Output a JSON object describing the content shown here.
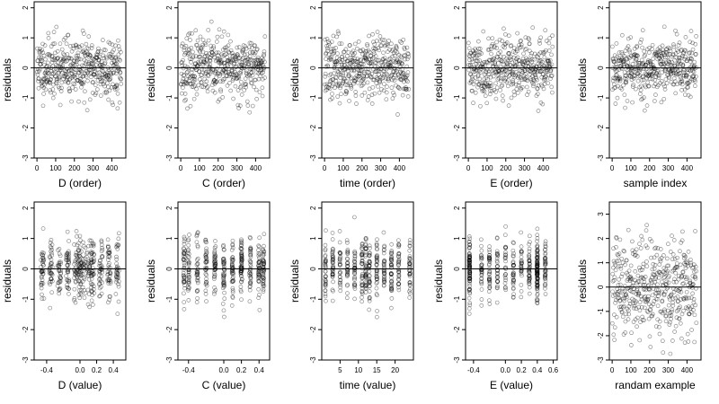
{
  "chart_data": [
    {
      "type": "scatter",
      "xlabel": "D (order)",
      "ylabel": "residuals",
      "xlim": [
        -15,
        475
      ],
      "ylim": [
        -3,
        2.2
      ],
      "xticks": [
        0,
        100,
        200,
        300,
        400
      ],
      "yticks": [
        -3,
        -2,
        -1,
        0,
        1,
        2
      ],
      "hline": 0,
      "gen": {
        "n": 450,
        "mode": "index",
        "sd": 0.5,
        "seed": 11
      },
      "points": []
    },
    {
      "type": "scatter",
      "xlabel": "C (order)",
      "ylabel": "residuals",
      "xlim": [
        -15,
        475
      ],
      "ylim": [
        -3,
        2.2
      ],
      "xticks": [
        0,
        100,
        200,
        300,
        400
      ],
      "yticks": [
        -3,
        -2,
        -1,
        0,
        1,
        2
      ],
      "hline": 0,
      "gen": {
        "n": 450,
        "mode": "index",
        "sd": 0.5,
        "seed": 23
      },
      "points": []
    },
    {
      "type": "scatter",
      "xlabel": "time (order)",
      "ylabel": "residuals",
      "xlim": [
        -15,
        475
      ],
      "ylim": [
        -3,
        2.2
      ],
      "xticks": [
        0,
        100,
        200,
        300,
        400
      ],
      "yticks": [
        -3,
        -2,
        -1,
        0,
        1,
        2
      ],
      "hline": 0,
      "gen": {
        "n": 450,
        "mode": "index",
        "sd": 0.5,
        "seed": 37
      },
      "points": []
    },
    {
      "type": "scatter",
      "xlabel": "E (order)",
      "ylabel": "residuals",
      "xlim": [
        -15,
        475
      ],
      "ylim": [
        -3,
        2.2
      ],
      "xticks": [
        0,
        100,
        200,
        300,
        400
      ],
      "yticks": [
        -3,
        -2,
        -1,
        0,
        1,
        2
      ],
      "hline": 0,
      "gen": {
        "n": 450,
        "mode": "index",
        "sd": 0.5,
        "seed": 41
      },
      "points": []
    },
    {
      "type": "scatter",
      "xlabel": "sample index",
      "ylabel": "residuals",
      "xlim": [
        -15,
        475
      ],
      "ylim": [
        -3,
        2.2
      ],
      "xticks": [
        0,
        100,
        200,
        300,
        400
      ],
      "yticks": [
        -3,
        -2,
        -1,
        0,
        1,
        2
      ],
      "hline": 0,
      "gen": {
        "n": 450,
        "mode": "index",
        "sd": 0.5,
        "seed": 53
      },
      "points": []
    },
    {
      "type": "scatter",
      "xlabel": "D (value)",
      "ylabel": "residuals",
      "xlim": [
        -0.55,
        0.55
      ],
      "ylim": [
        -3,
        2.2
      ],
      "xticks": [
        -0.4,
        0,
        0.2,
        0.4
      ],
      "ytick_labels": true,
      "yticks": [
        -3,
        -2,
        -1,
        0,
        1,
        2
      ],
      "hline": 0,
      "gen": {
        "n": 450,
        "mode": "values",
        "values": [
          -0.45,
          -0.35,
          -0.25,
          -0.15,
          -0.05,
          0.0,
          0.05,
          0.1,
          0.15,
          0.25,
          0.35,
          0.45
        ],
        "jitter": 0.02,
        "sd": 0.5,
        "seed": 61
      },
      "points": []
    },
    {
      "type": "scatter",
      "xlabel": "C (value)",
      "ylabel": "residuals",
      "xlim": [
        -0.52,
        0.52
      ],
      "ylim": [
        -3,
        2.2
      ],
      "xticks": [
        -0.4,
        0,
        0.2,
        0.4
      ],
      "yticks": [
        -3,
        -2,
        -1,
        0,
        1,
        2
      ],
      "hline": 0,
      "gen": {
        "n": 450,
        "mode": "values",
        "values": [
          -0.45,
          -0.4,
          -0.3,
          -0.2,
          -0.1,
          0,
          0.1,
          0.2,
          0.3,
          0.4,
          0.45
        ],
        "jitter": 0.008,
        "sd": 0.5,
        "seed": 71
      },
      "points": []
    },
    {
      "type": "scatter",
      "xlabel": "time (value)",
      "ylabel": "residuals",
      "xlim": [
        0,
        25
      ],
      "ylim": [
        -3,
        2.2
      ],
      "xticks": [
        5,
        10,
        15,
        20
      ],
      "yticks": [
        -3,
        -2,
        -1,
        0,
        1,
        2
      ],
      "hline": 0,
      "gen": {
        "n": 450,
        "mode": "values",
        "values": [
          1,
          3,
          5,
          7,
          9,
          11,
          12,
          13,
          15,
          17,
          19,
          21,
          24
        ],
        "jitter": 0.1,
        "sd": 0.5,
        "seed": 83
      },
      "points": []
    },
    {
      "type": "scatter",
      "xlabel": "E (value)",
      "ylabel": "residuals",
      "xlim": [
        -0.5,
        0.65
      ],
      "ylim": [
        -3,
        2.2
      ],
      "xticks": [
        -0.4,
        0,
        0.2,
        0.4,
        0.6
      ],
      "yticks": [
        -3,
        -2,
        -1,
        0,
        1,
        2
      ],
      "hline": 0,
      "gen": {
        "n": 450,
        "mode": "values",
        "values": [
          -0.45,
          -0.45,
          -0.45,
          -0.3,
          -0.2,
          -0.1,
          0,
          0.1,
          0.2,
          0.3,
          0.4,
          0.4,
          0.4,
          0.5
        ],
        "jitter": 0.005,
        "sd": 0.5,
        "seed": 97
      },
      "points": []
    },
    {
      "type": "scatter",
      "xlabel": "randam example",
      "ylabel": "residuals",
      "xlim": [
        -15,
        475
      ],
      "ylim": [
        -3,
        3.5
      ],
      "xticks": [
        0,
        100,
        200,
        300,
        400
      ],
      "yticks": [
        -3,
        -2,
        -1,
        0,
        1,
        2,
        3
      ],
      "hline": 0,
      "gen": {
        "n": 450,
        "mode": "index",
        "sd": 1.0,
        "seed": 101
      },
      "points": []
    }
  ]
}
